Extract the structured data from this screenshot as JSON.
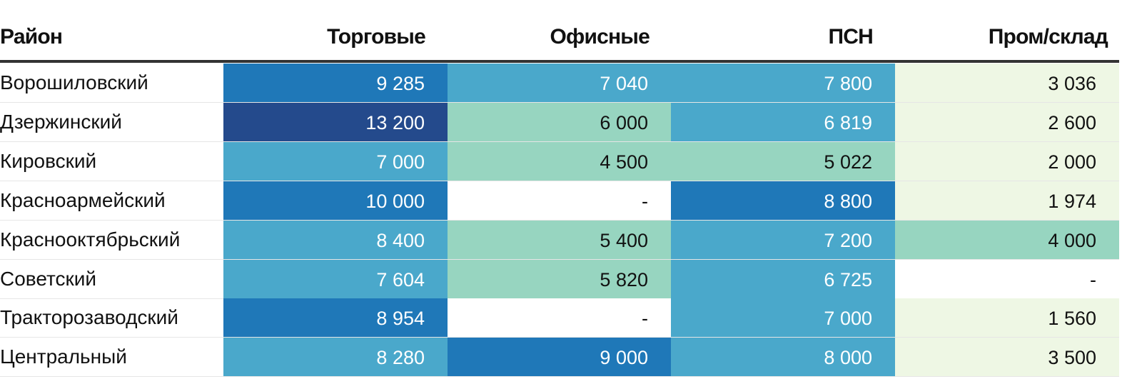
{
  "chart_data": {
    "type": "table",
    "columns": [
      "Район",
      "Торговые",
      "Офисные",
      "ПСН",
      "Пром/склад"
    ],
    "rows": [
      {
        "name": "Ворошиловский",
        "values": [
          "9 285",
          "7 040",
          "7 800",
          "3 036"
        ],
        "colors": [
          "#1f78b8",
          "#4aa8cb",
          "#4aa8cb",
          "#eef7e4"
        ]
      },
      {
        "name": "Дзержинский",
        "values": [
          "13 200",
          "6 000",
          "6 819",
          "2 600"
        ],
        "colors": [
          "#244a8c",
          "#97d5c0",
          "#4aa8cb",
          "#eef7e4"
        ]
      },
      {
        "name": "Кировский",
        "values": [
          "7 000",
          "4 500",
          "5 022",
          "2 000"
        ],
        "colors": [
          "#4aa8cb",
          "#97d5c0",
          "#97d5c0",
          "#eef7e4"
        ]
      },
      {
        "name": "Красноармейский",
        "values": [
          "10 000",
          "-",
          "8 800",
          "1 974"
        ],
        "colors": [
          "#1f78b8",
          "#ffffff",
          "#1f78b8",
          "#eef7e4"
        ]
      },
      {
        "name": "Краснооктябрьский",
        "values": [
          "8 400",
          "5 400",
          "7 200",
          "4 000"
        ],
        "colors": [
          "#4aa8cb",
          "#97d5c0",
          "#4aa8cb",
          "#97d5c0"
        ]
      },
      {
        "name": "Советский",
        "values": [
          "7 604",
          "5 820",
          "6 725",
          "-"
        ],
        "colors": [
          "#4aa8cb",
          "#97d5c0",
          "#4aa8cb",
          "#ffffff"
        ]
      },
      {
        "name": "Тракторозаводский",
        "values": [
          "8 954",
          "-",
          "7 000",
          "1 560"
        ],
        "colors": [
          "#1f78b8",
          "#ffffff",
          "#4aa8cb",
          "#eef7e4"
        ]
      },
      {
        "name": "Центральный",
        "values": [
          "8 280",
          "9 000",
          "8 000",
          "3 500"
        ],
        "colors": [
          "#4aa8cb",
          "#1f78b8",
          "#4aa8cb",
          "#eef7e4"
        ]
      }
    ]
  }
}
